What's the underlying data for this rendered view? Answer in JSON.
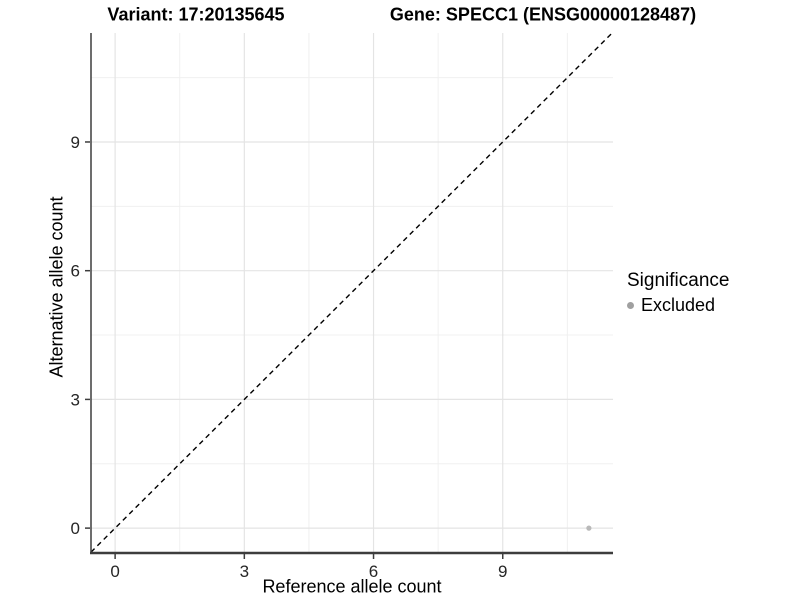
{
  "header": {
    "variant_title": "Variant: 17:20135645",
    "gene_title": "Gene: SPECC1 (ENSG00000128487)"
  },
  "chart_data": {
    "type": "scatter",
    "xlabel": "Reference allele count",
    "ylabel": "Alternative allele count",
    "xlim": [
      -0.56,
      11.56
    ],
    "ylim": [
      -0.58,
      11.54
    ],
    "x_major_ticks": [
      0,
      3,
      6,
      9
    ],
    "x_minor_ticks": [
      1.5,
      4.5,
      7.5,
      10.5
    ],
    "y_major_ticks": [
      0,
      3,
      6,
      9
    ],
    "y_minor_ticks": [
      1.5,
      4.5,
      7.5,
      10.5
    ],
    "grid": true,
    "points": [
      {
        "x": 11,
        "y": 0,
        "significance": "Excluded",
        "color": "#b9b9b9"
      }
    ],
    "reference_line": {
      "type": "identity (y = x)",
      "style": "dashed",
      "color": "#000000",
      "from": -0.56,
      "to": 11.54
    },
    "legend": {
      "title": "Significance",
      "position": "right",
      "items": [
        {
          "label": "Excluded",
          "color": "#a0a0a0"
        }
      ]
    }
  },
  "colors": {
    "background": "#ffffff",
    "grid_major": "#e4e4e4",
    "grid_minor": "#f0f0f0",
    "axis_line": "#3d3d3d",
    "tick_text": "#262626",
    "excluded_point": "#b9b9b9"
  }
}
